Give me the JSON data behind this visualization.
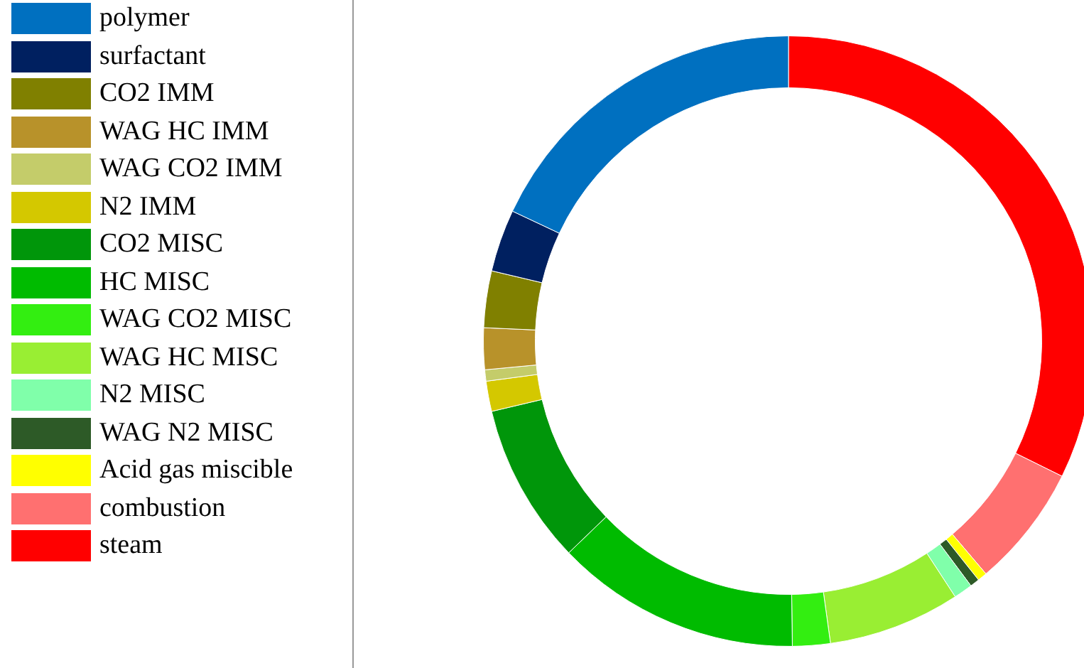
{
  "chart_data": {
    "type": "donut",
    "legend": "left",
    "categories": [
      "polymer",
      "surfactant",
      "CO2 IMM",
      "WAG HC IMM",
      "WAG CO2 IMM",
      "N2 IMM",
      "CO2 MISC",
      "HC MISC",
      "WAG CO2 MISC",
      "WAG HC MISC",
      "N2 MISC",
      "WAG N2 MISC",
      "Acid gas miscible",
      "combustion",
      "steam"
    ],
    "values": [
      18,
      3.3,
      3,
      2.2,
      0.6,
      1.6,
      8.5,
      13,
      2,
      7,
      1,
      0.5,
      0.5,
      6.5,
      32.3
    ],
    "colors": [
      "#0070c0",
      "#002060",
      "#808000",
      "#b8922a",
      "#c4cc6a",
      "#d4c800",
      "#00960a",
      "#00bb00",
      "#33ee11",
      "#99ee33",
      "#80ffaa",
      "#2d5a27",
      "#ffff00",
      "#ff7070",
      "#ff0000"
    ]
  }
}
